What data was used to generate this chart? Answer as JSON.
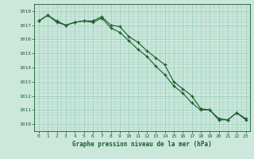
{
  "title": "Graphe pression niveau de la mer (hPa)",
  "background_color": "#cce8dd",
  "plot_background": "#cce8dd",
  "grid_color": "#99ccbb",
  "line_color": "#1a5c2a",
  "marker_color": "#1a5c2a",
  "xlim": [
    -0.5,
    23.5
  ],
  "ylim": [
    1009.5,
    1018.5
  ],
  "yticks": [
    1010,
    1011,
    1012,
    1013,
    1014,
    1015,
    1016,
    1017,
    1018
  ],
  "xticks": [
    0,
    1,
    2,
    3,
    4,
    5,
    6,
    7,
    8,
    9,
    10,
    11,
    12,
    13,
    14,
    15,
    16,
    17,
    18,
    19,
    20,
    21,
    22,
    23
  ],
  "series1_x": [
    0,
    1,
    2,
    3,
    4,
    5,
    6,
    7,
    8,
    9,
    10,
    11,
    12,
    13,
    14,
    15,
    16,
    17,
    18,
    19,
    20,
    21,
    22,
    23
  ],
  "series1_y": [
    1017.3,
    1017.7,
    1017.3,
    1017.0,
    1017.2,
    1017.3,
    1017.3,
    1017.6,
    1017.0,
    1016.9,
    1016.2,
    1015.8,
    1015.2,
    1014.7,
    1014.2,
    1013.0,
    1012.5,
    1012.0,
    1011.1,
    1011.0,
    1010.4,
    1010.3,
    1010.8,
    1010.4
  ],
  "series2_x": [
    0,
    1,
    2,
    3,
    4,
    5,
    6,
    7,
    8,
    9,
    10,
    11,
    12,
    13,
    14,
    15,
    16,
    17,
    18,
    19,
    20,
    21,
    22,
    23
  ],
  "series2_y": [
    1017.3,
    1017.7,
    1017.2,
    1017.0,
    1017.2,
    1017.3,
    1017.2,
    1017.5,
    1016.8,
    1016.5,
    1015.9,
    1015.3,
    1014.8,
    1014.1,
    1013.5,
    1012.7,
    1012.2,
    1011.5,
    1011.0,
    1011.0,
    1010.3,
    1010.3,
    1010.8,
    1010.3
  ],
  "ylabel_fontsize": 5.0,
  "xlabel_fontsize": 5.5,
  "tick_labelsize": 4.5
}
